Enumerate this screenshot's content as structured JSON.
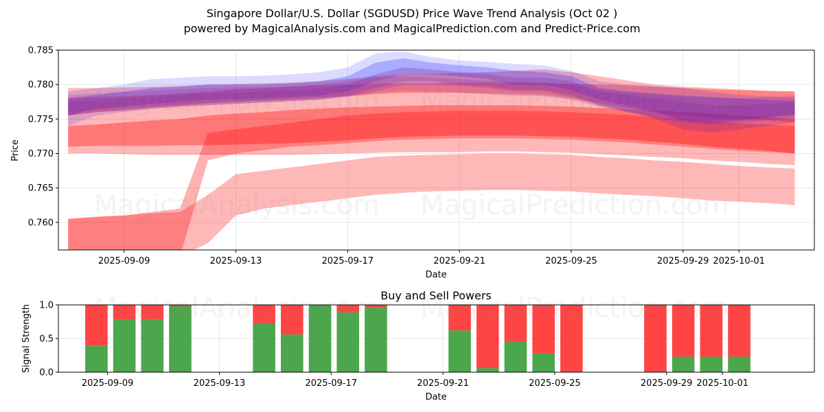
{
  "header": {
    "title": "Singapore Dollar/U.S. Dollar (SGDUSD) Price Wave Trend Analysis (Oct 02 )",
    "subtitle": "powered by MagicalAnalysis.com and MagicalPrediction.com and Predict-Price.com"
  },
  "watermarks": [
    "MagicalAnalysis.com",
    "MagicalPrediction.com"
  ],
  "colors": {
    "red": "#ff0000",
    "blue": "#0000ff",
    "purple": "#8b2f9e",
    "green": "#4ca64c",
    "sellRed": "#ff4444"
  },
  "chart_data": [
    {
      "type": "area",
      "title": "",
      "xlabel": "Date",
      "ylabel": "Price",
      "xlim": [
        "2025-09-07",
        "2025-10-04"
      ],
      "ylim": [
        0.756,
        0.785
      ],
      "x_ticks": [
        "2025-09-09",
        "2025-09-13",
        "2025-09-17",
        "2025-09-21",
        "2025-09-25",
        "2025-09-29",
        "2025-10-01"
      ],
      "y_ticks": [
        "0.760",
        "0.765",
        "0.770",
        "0.775",
        "0.780",
        "0.785"
      ],
      "grid": true,
      "x": [
        "2025-09-07",
        "2025-09-08",
        "2025-09-09",
        "2025-09-10",
        "2025-09-11",
        "2025-09-12",
        "2025-09-13",
        "2025-09-14",
        "2025-09-15",
        "2025-09-16",
        "2025-09-17",
        "2025-09-18",
        "2025-09-19",
        "2025-09-20",
        "2025-09-21",
        "2025-09-22",
        "2025-09-23",
        "2025-09-24",
        "2025-09-25",
        "2025-09-26",
        "2025-09-27",
        "2025-09-28",
        "2025-09-29",
        "2025-09-30",
        "2025-10-01",
        "2025-10-02",
        "2025-10-03"
      ],
      "series": [
        {
          "name": "red-band-outer",
          "color": "red",
          "opacity": 0.28,
          "upper": [
            0.7605,
            0.7608,
            0.761,
            0.7613,
            0.7615,
            0.764,
            0.767,
            0.7675,
            0.768,
            0.7685,
            0.769,
            0.7695,
            0.7697,
            0.7698,
            0.7699,
            0.77,
            0.77,
            0.7699,
            0.7698,
            0.7695,
            0.7693,
            0.769,
            0.7688,
            0.7685,
            0.7682,
            0.768,
            0.7678
          ],
          "lower": [
            0.755,
            0.755,
            0.755,
            0.755,
            0.755,
            0.757,
            0.761,
            0.762,
            0.7625,
            0.763,
            0.7635,
            0.764,
            0.7643,
            0.7645,
            0.7646,
            0.7647,
            0.7647,
            0.7646,
            0.7645,
            0.7642,
            0.764,
            0.7638,
            0.7635,
            0.7632,
            0.763,
            0.7628,
            0.7625
          ]
        },
        {
          "name": "red-band-wide",
          "color": "red",
          "opacity": 0.28,
          "upper": [
            0.778,
            0.7782,
            0.7783,
            0.7785,
            0.7787,
            0.779,
            0.7793,
            0.7795,
            0.7797,
            0.7799,
            0.78,
            0.7801,
            0.7802,
            0.7802,
            0.7803,
            0.7803,
            0.7803,
            0.7802,
            0.7801,
            0.78,
            0.7799,
            0.7797,
            0.7795,
            0.7793,
            0.7792,
            0.7791,
            0.779
          ],
          "lower": [
            0.77,
            0.77,
            0.7699,
            0.7698,
            0.7698,
            0.7698,
            0.7698,
            0.7698,
            0.7698,
            0.7699,
            0.77,
            0.7701,
            0.7702,
            0.7702,
            0.7702,
            0.7703,
            0.7703,
            0.7702,
            0.7701,
            0.7699,
            0.7697,
            0.7695,
            0.7693,
            0.769,
            0.7688,
            0.7685,
            0.7683
          ]
        },
        {
          "name": "red-band-mid",
          "color": "red",
          "opacity": 0.35,
          "upper": [
            0.774,
            0.7742,
            0.7745,
            0.7748,
            0.775,
            0.7755,
            0.7758,
            0.776,
            0.7763,
            0.7765,
            0.7767,
            0.7768,
            0.7769,
            0.777,
            0.777,
            0.777,
            0.777,
            0.7769,
            0.7768,
            0.7766,
            0.7764,
            0.7762,
            0.776,
            0.7758,
            0.7755,
            0.7753,
            0.775
          ],
          "lower": [
            0.771,
            0.7711,
            0.7711,
            0.7711,
            0.7712,
            0.7712,
            0.7713,
            0.7714,
            0.7715,
            0.7717,
            0.7719,
            0.7722,
            0.7724,
            0.7725,
            0.7726,
            0.7726,
            0.7726,
            0.7725,
            0.7724,
            0.7722,
            0.772,
            0.7717,
            0.7714,
            0.771,
            0.7707,
            0.7704,
            0.77
          ]
        },
        {
          "name": "red-band-rising",
          "color": "red",
          "opacity": 0.3,
          "upper": [
            0.7605,
            0.7608,
            0.761,
            0.7615,
            0.762,
            0.773,
            0.7735,
            0.774,
            0.7745,
            0.775,
            0.7755,
            0.7758,
            0.776,
            0.7761,
            0.7762,
            0.7762,
            0.7762,
            0.7761,
            0.776,
            0.7758,
            0.7756,
            0.7753,
            0.775,
            0.7747,
            0.7744,
            0.7742,
            0.774
          ],
          "lower": [
            0.755,
            0.755,
            0.755,
            0.755,
            0.755,
            0.769,
            0.77,
            0.7705,
            0.771,
            0.7712,
            0.7715,
            0.7718,
            0.772,
            0.7721,
            0.7722,
            0.7722,
            0.7722,
            0.7721,
            0.772,
            0.7718,
            0.7716,
            0.7713,
            0.771,
            0.7707,
            0.7704,
            0.7702,
            0.77
          ]
        },
        {
          "name": "red-band-top",
          "color": "red",
          "opacity": 0.28,
          "upper": [
            0.7795,
            0.7795,
            0.7796,
            0.7797,
            0.7798,
            0.78,
            0.7801,
            0.7802,
            0.7803,
            0.7805,
            0.7808,
            0.7812,
            0.7815,
            0.7816,
            0.7817,
            0.7818,
            0.782,
            0.7822,
            0.7818,
            0.7812,
            0.7806,
            0.78,
            0.7797,
            0.7795,
            0.7793,
            0.7791,
            0.779
          ],
          "lower": [
            0.7755,
            0.776,
            0.7763,
            0.7767,
            0.777,
            0.7773,
            0.7775,
            0.7777,
            0.7779,
            0.7781,
            0.7783,
            0.7786,
            0.7788,
            0.7788,
            0.7788,
            0.7787,
            0.7786,
            0.7785,
            0.778,
            0.7773,
            0.7766,
            0.776,
            0.7755,
            0.7752,
            0.775,
            0.7748,
            0.7745
          ]
        },
        {
          "name": "blue-band-outer",
          "color": "blue",
          "opacity": 0.14,
          "upper": [
            0.779,
            0.7795,
            0.78,
            0.7808,
            0.781,
            0.7812,
            0.7812,
            0.7813,
            0.7815,
            0.7818,
            0.7825,
            0.7845,
            0.7848,
            0.784,
            0.7835,
            0.7833,
            0.783,
            0.7828,
            0.782,
            0.7805,
            0.78,
            0.7798,
            0.7795,
            0.779,
            0.7785,
            0.7783,
            0.778
          ],
          "lower": [
            0.774,
            0.7755,
            0.776,
            0.7765,
            0.7768,
            0.777,
            0.7772,
            0.7774,
            0.7776,
            0.7778,
            0.7782,
            0.779,
            0.78,
            0.78,
            0.7798,
            0.7795,
            0.779,
            0.779,
            0.7782,
            0.777,
            0.7762,
            0.775,
            0.7735,
            0.773,
            0.7735,
            0.774,
            0.7745
          ]
        },
        {
          "name": "blue-band-core",
          "color": "blue",
          "opacity": 0.22,
          "upper": [
            0.778,
            0.7785,
            0.779,
            0.7795,
            0.7797,
            0.78,
            0.78,
            0.78,
            0.7802,
            0.7805,
            0.7812,
            0.7832,
            0.7838,
            0.7832,
            0.7828,
            0.7825,
            0.782,
            0.7818,
            0.7812,
            0.7795,
            0.779,
            0.7787,
            0.7784,
            0.7782,
            0.778,
            0.7778,
            0.7776
          ],
          "lower": [
            0.7755,
            0.7765,
            0.7768,
            0.7772,
            0.7775,
            0.7778,
            0.7779,
            0.778,
            0.7782,
            0.7784,
            0.779,
            0.7805,
            0.7815,
            0.7815,
            0.7812,
            0.7808,
            0.78,
            0.78,
            0.7792,
            0.7778,
            0.777,
            0.776,
            0.7748,
            0.7745,
            0.7748,
            0.7752,
            0.7756
          ]
        },
        {
          "name": "purple-band-core",
          "color": "purple",
          "opacity": 0.3,
          "upper": [
            0.7775,
            0.7778,
            0.778,
            0.7783,
            0.7785,
            0.7787,
            0.7788,
            0.779,
            0.7792,
            0.7794,
            0.78,
            0.7815,
            0.7825,
            0.7822,
            0.7818,
            0.7815,
            0.781,
            0.781,
            0.7805,
            0.779,
            0.7785,
            0.778,
            0.7775,
            0.777,
            0.777,
            0.7772,
            0.7774
          ],
          "lower": [
            0.7755,
            0.776,
            0.7762,
            0.7765,
            0.7768,
            0.777,
            0.7772,
            0.7774,
            0.7776,
            0.7778,
            0.7784,
            0.7795,
            0.7805,
            0.7805,
            0.78,
            0.7798,
            0.7792,
            0.7792,
            0.7785,
            0.777,
            0.776,
            0.7752,
            0.7745,
            0.7742,
            0.7745,
            0.7748,
            0.7752
          ]
        },
        {
          "name": "magenta-band",
          "color": "purple",
          "opacity": 0.22,
          "upper": [
            0.7785,
            0.7787,
            0.7789,
            0.7791,
            0.7793,
            0.7795,
            0.7796,
            0.7797,
            0.7798,
            0.78,
            0.7805,
            0.781,
            0.7812,
            0.781,
            0.7808,
            0.7806,
            0.7804,
            0.7803,
            0.78,
            0.7792,
            0.7788,
            0.7785,
            0.7782,
            0.778,
            0.778,
            0.7782,
            0.7784
          ],
          "lower": [
            0.776,
            0.7763,
            0.7766,
            0.7769,
            0.7771,
            0.7773,
            0.7775,
            0.7777,
            0.7778,
            0.778,
            0.7783,
            0.7788,
            0.7791,
            0.779,
            0.7788,
            0.7786,
            0.7784,
            0.7783,
            0.7778,
            0.7768,
            0.776,
            0.7754,
            0.775,
            0.7748,
            0.775,
            0.7754,
            0.7758
          ]
        }
      ]
    },
    {
      "type": "bar",
      "title": "Buy and Sell Powers",
      "xlabel": "Date",
      "ylabel": "Signal Strength",
      "ylim": [
        0,
        1.0
      ],
      "y_ticks": [
        "0.0",
        "0.5",
        "1.0"
      ],
      "x_ticks": [
        "2025-09-09",
        "2025-09-13",
        "2025-09-17",
        "2025-09-21",
        "2025-09-25",
        "2025-09-29",
        "2025-10-01"
      ],
      "categories": [
        "2025-09-08",
        "2025-09-09",
        "2025-09-10",
        "2025-09-11",
        "2025-09-14",
        "2025-09-15",
        "2025-09-16",
        "2025-09-17",
        "2025-09-18",
        "2025-09-21",
        "2025-09-22",
        "2025-09-23",
        "2025-09-24",
        "2025-09-25",
        "2025-09-28",
        "2025-09-29",
        "2025-09-30",
        "2025-10-01"
      ],
      "series": [
        {
          "name": "Buy",
          "color": "green",
          "values": [
            0.39,
            0.78,
            0.78,
            0.98,
            0.73,
            0.56,
            1.0,
            0.89,
            0.96,
            0.62,
            0.06,
            0.45,
            0.28,
            0.0,
            0.0,
            0.23,
            0.23,
            0.23
          ]
        },
        {
          "name": "Sell",
          "color": "sellRed",
          "values": [
            0.61,
            0.22,
            0.22,
            0.02,
            0.27,
            0.44,
            0.0,
            0.11,
            0.04,
            0.38,
            0.94,
            0.55,
            0.72,
            1.0,
            1.0,
            0.77,
            0.77,
            0.77
          ]
        }
      ]
    }
  ]
}
